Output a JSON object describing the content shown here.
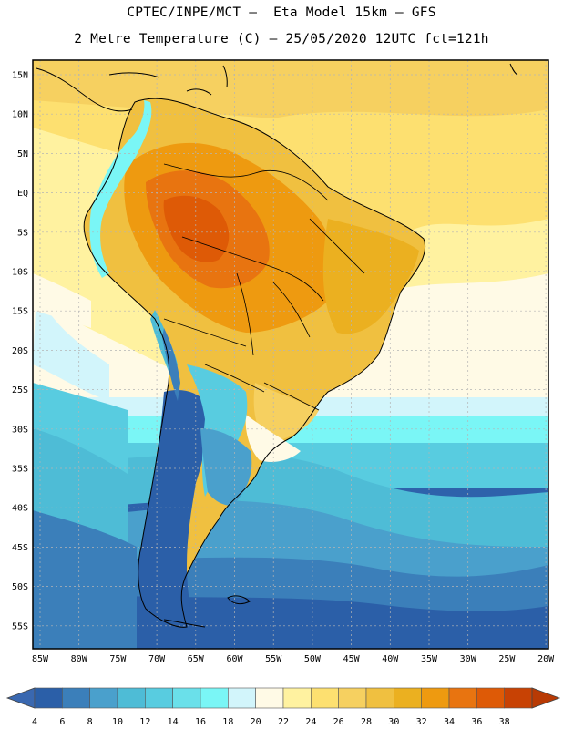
{
  "header": {
    "line1": "CPTEC/INPE/MCT –  Eta Model 15km – GFS",
    "line2": "2 Metre Temperature (C) – 25/05/2020 12UTC fct=121h"
  },
  "axes": {
    "lat_labels": [
      "15N",
      "10N",
      "5N",
      "EQ",
      "5S",
      "10S",
      "15S",
      "20S",
      "25S",
      "30S",
      "35S",
      "40S",
      "45S",
      "50S",
      "55S"
    ],
    "lon_labels": [
      "85W",
      "80W",
      "75W",
      "70W",
      "65W",
      "60W",
      "55W",
      "50W",
      "45W",
      "40W",
      "35W",
      "30W",
      "25W",
      "20W"
    ]
  },
  "colorbar": {
    "ticks": [
      "4",
      "6",
      "8",
      "10",
      "12",
      "14",
      "16",
      "18",
      "20",
      "22",
      "24",
      "26",
      "28",
      "30",
      "32",
      "34",
      "36",
      "38"
    ],
    "colors": [
      "#2b5fa8",
      "#3b7fba",
      "#4aa0cc",
      "#4ebcd6",
      "#58cce0",
      "#6ae0ea",
      "#7af6f6",
      "#d2f5fb",
      "#fffae6",
      "#fff2a0",
      "#fde070",
      "#f6d060",
      "#f0c040",
      "#ebb020",
      "#ee9a10",
      "#e87410",
      "#de5a06",
      "#c84204"
    ],
    "under_color": "#3a68b0",
    "over_color": "#b83a04"
  }
}
